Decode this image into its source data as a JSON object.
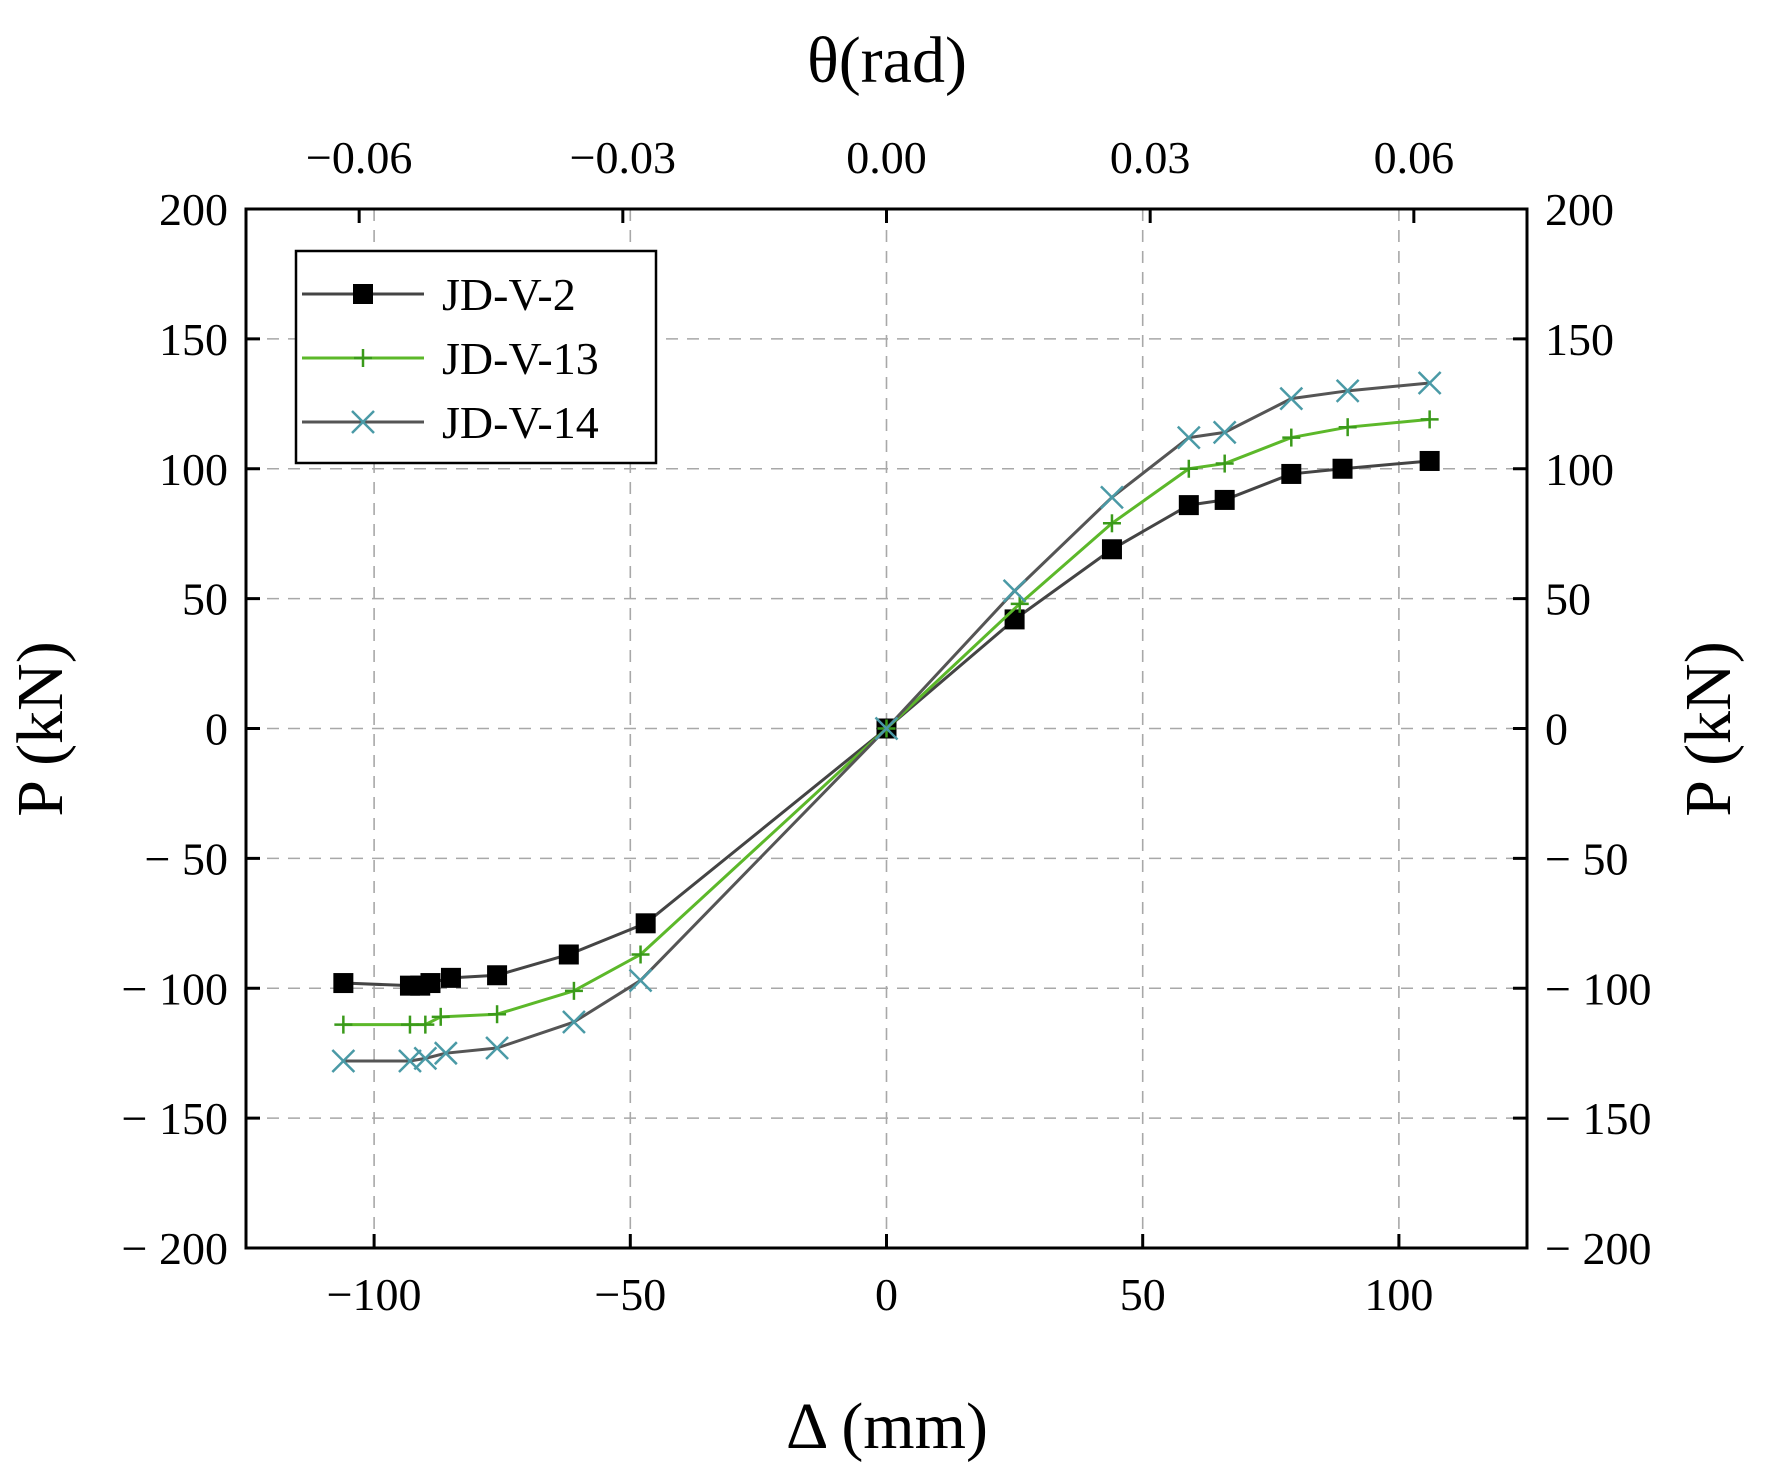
{
  "chart_data": {
    "type": "line",
    "title": "",
    "xlabel": "Δ (mm)",
    "ylabel": "P (kN)",
    "ylabel_right": "P (kN)",
    "xlabel_top": "θ(rad)",
    "xlim": [
      -125,
      125
    ],
    "ylim": [
      -200,
      200
    ],
    "x_ticks": [
      -100,
      -50,
      0,
      50,
      100
    ],
    "x_tick_labels": [
      "−100",
      "−50",
      "0",
      "50",
      "100"
    ],
    "y_ticks": [
      200,
      150,
      100,
      50,
      0,
      -50,
      -100,
      -150,
      -200
    ],
    "y_tick_labels": [
      "200",
      "150",
      "100",
      "50",
      "0",
      "− 50",
      "− 100",
      "− 150",
      "− 200"
    ],
    "top_ticks": [
      -0.06,
      -0.03,
      0.0,
      0.03,
      0.06
    ],
    "top_tick_labels": [
      "−0.06",
      "−0.03",
      "0.00",
      "0.03",
      "0.06"
    ],
    "top_per_mm": 0.000583,
    "grid": true,
    "legend_position": "top-left",
    "series": [
      {
        "name": "JD-V-2",
        "line_color": "#444444",
        "marker": "square",
        "marker_color": "#000000",
        "x": [
          -106,
          -93,
          -91,
          -89,
          -85,
          -76,
          -62,
          -47,
          0,
          25,
          44,
          59,
          66,
          79,
          89,
          106
        ],
        "y": [
          -98,
          -99,
          -99,
          -98,
          -96,
          -95,
          -87,
          -75,
          0,
          42,
          69,
          86,
          88,
          98,
          100,
          103
        ]
      },
      {
        "name": "JD-V-13",
        "line_color": "#5cb82a",
        "marker": "plus",
        "marker_color": "#3a9a1a",
        "x": [
          -106,
          -93,
          -90,
          -87,
          -76,
          -61,
          -48,
          0,
          26,
          44,
          59,
          66,
          79,
          90,
          106
        ],
        "y": [
          -114,
          -114,
          -114,
          -111,
          -110,
          -101,
          -87,
          0,
          48,
          79,
          100,
          102,
          112,
          116,
          119
        ]
      },
      {
        "name": "JD-V-14",
        "line_color": "#555555",
        "marker": "x",
        "marker_color": "#4a9aa6",
        "x": [
          -106,
          -93,
          -90,
          -86,
          -76,
          -61,
          -48,
          0,
          25,
          44,
          59,
          66,
          79,
          90,
          106
        ],
        "y": [
          -128,
          -128,
          -127,
          -125,
          -123,
          -113,
          -97,
          0,
          53,
          89,
          112,
          114,
          127,
          130,
          133
        ]
      }
    ]
  }
}
